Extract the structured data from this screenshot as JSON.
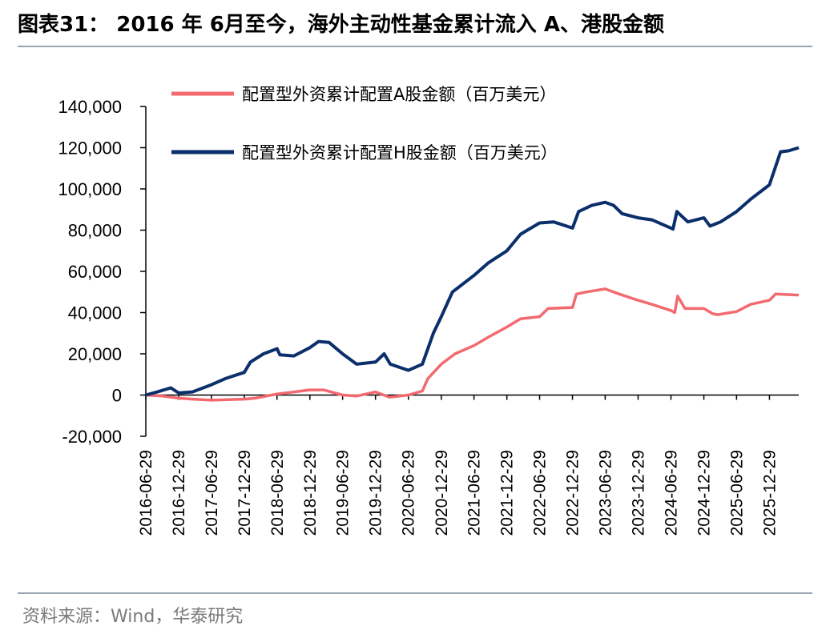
{
  "title": "图表31： 2016 年 6月至今，海外主动性基金累计流入 A、港股金额",
  "source": "资料来源：Wind，华泰研究",
  "chart_data": {
    "type": "line",
    "xlabel": "",
    "ylabel": "",
    "ylim": [
      -20000,
      140000
    ],
    "yticks": [
      "-20,000",
      "0",
      "20,000",
      "40,000",
      "60,000",
      "80,000",
      "100,000",
      "120,000",
      "140,000"
    ],
    "xlim": [
      "2016-06-29",
      "2026-06-10"
    ],
    "xticks": [
      "2016-06-29",
      "2016-12-29",
      "2017-06-29",
      "2017-12-29",
      "2018-06-29",
      "2018-12-29",
      "2019-06-29",
      "2019-12-29",
      "2020-06-29",
      "2020-12-29",
      "2021-06-29",
      "2021-12-29",
      "2022-06-29",
      "2022-12-29",
      "2023-06-29",
      "2023-12-29",
      "2024-06-29",
      "2024-12-29",
      "2025-06-29",
      "2025-12-29"
    ],
    "grid": false,
    "legend": "top",
    "series": [
      {
        "name": "配置型外资累计配置A股金额（百万美元）",
        "color": "#f26a6f",
        "points": [
          [
            "2016-06-29",
            0
          ],
          [
            "2016-10-01",
            -500
          ],
          [
            "2016-12-29",
            -1500
          ],
          [
            "2017-03-15",
            -2000
          ],
          [
            "2017-06-29",
            -2500
          ],
          [
            "2017-12-29",
            -2000
          ],
          [
            "2018-03-01",
            -1500
          ],
          [
            "2018-06-29",
            500
          ],
          [
            "2018-10-01",
            1500
          ],
          [
            "2018-12-29",
            2500
          ],
          [
            "2019-03-15",
            2500
          ],
          [
            "2019-06-29",
            0
          ],
          [
            "2019-09-15",
            -500
          ],
          [
            "2019-12-29",
            1500
          ],
          [
            "2020-03-15",
            -1000
          ],
          [
            "2020-06-29",
            0
          ],
          [
            "2020-09-15",
            2000
          ],
          [
            "2020-10-15",
            8000
          ],
          [
            "2020-12-29",
            15000
          ],
          [
            "2021-03-15",
            20000
          ],
          [
            "2021-06-29",
            24000
          ],
          [
            "2021-09-15",
            28000
          ],
          [
            "2021-12-29",
            33000
          ],
          [
            "2022-03-15",
            37000
          ],
          [
            "2022-06-29",
            38000
          ],
          [
            "2022-08-15",
            42000
          ],
          [
            "2022-12-29",
            42500
          ],
          [
            "2023-01-20",
            49000
          ],
          [
            "2023-03-15",
            50000
          ],
          [
            "2023-06-29",
            51500
          ],
          [
            "2023-09-15",
            49000
          ],
          [
            "2023-12-29",
            46000
          ],
          [
            "2024-03-15",
            44000
          ],
          [
            "2024-06-29",
            41000
          ],
          [
            "2024-07-20",
            40000
          ],
          [
            "2024-08-05",
            48000
          ],
          [
            "2024-09-15",
            42000
          ],
          [
            "2024-12-29",
            42000
          ],
          [
            "2025-02-15",
            39500
          ],
          [
            "2025-03-15",
            39000
          ],
          [
            "2025-06-29",
            40500
          ],
          [
            "2025-09-15",
            44000
          ],
          [
            "2025-12-29",
            46000
          ],
          [
            "2026-02-01",
            49000
          ],
          [
            "2026-06-10",
            48500
          ]
        ]
      },
      {
        "name": "配置型外资累计配置H股金额（百万美元）",
        "color": "#0b2f6b",
        "points": [
          [
            "2016-06-29",
            0
          ],
          [
            "2016-09-01",
            1500
          ],
          [
            "2016-11-15",
            3500
          ],
          [
            "2016-12-29",
            1000
          ],
          [
            "2017-03-15",
            1500
          ],
          [
            "2017-06-29",
            5000
          ],
          [
            "2017-09-15",
            8000
          ],
          [
            "2017-12-29",
            11000
          ],
          [
            "2018-02-01",
            16000
          ],
          [
            "2018-04-15",
            20000
          ],
          [
            "2018-06-29",
            22500
          ],
          [
            "2018-07-15",
            19500
          ],
          [
            "2018-10-01",
            19000
          ],
          [
            "2018-12-29",
            23000
          ],
          [
            "2019-02-15",
            26000
          ],
          [
            "2019-04-15",
            25500
          ],
          [
            "2019-06-29",
            20000
          ],
          [
            "2019-09-15",
            15000
          ],
          [
            "2019-12-29",
            16000
          ],
          [
            "2020-02-15",
            20000
          ],
          [
            "2020-03-20",
            15000
          ],
          [
            "2020-06-29",
            12000
          ],
          [
            "2020-09-15",
            15000
          ],
          [
            "2020-11-15",
            30000
          ],
          [
            "2020-12-29",
            38000
          ],
          [
            "2021-03-01",
            50000
          ],
          [
            "2021-06-29",
            58000
          ],
          [
            "2021-09-15",
            64000
          ],
          [
            "2021-12-29",
            70000
          ],
          [
            "2022-03-15",
            78000
          ],
          [
            "2022-06-29",
            83500
          ],
          [
            "2022-09-15",
            84000
          ],
          [
            "2022-12-29",
            81000
          ],
          [
            "2023-02-01",
            89000
          ],
          [
            "2023-04-15",
            92000
          ],
          [
            "2023-06-29",
            93500
          ],
          [
            "2023-08-15",
            92000
          ],
          [
            "2023-10-01",
            88000
          ],
          [
            "2023-12-29",
            86000
          ],
          [
            "2024-03-15",
            85000
          ],
          [
            "2024-06-29",
            81000
          ],
          [
            "2024-07-10",
            80500
          ],
          [
            "2024-08-01",
            89000
          ],
          [
            "2024-10-01",
            84000
          ],
          [
            "2024-12-29",
            86000
          ],
          [
            "2025-02-01",
            82000
          ],
          [
            "2025-04-01",
            84000
          ],
          [
            "2025-06-29",
            89000
          ],
          [
            "2025-09-15",
            95000
          ],
          [
            "2025-12-29",
            102000
          ],
          [
            "2026-03-01",
            118000
          ],
          [
            "2026-04-15",
            118500
          ],
          [
            "2026-06-10",
            120000
          ]
        ]
      }
    ]
  }
}
